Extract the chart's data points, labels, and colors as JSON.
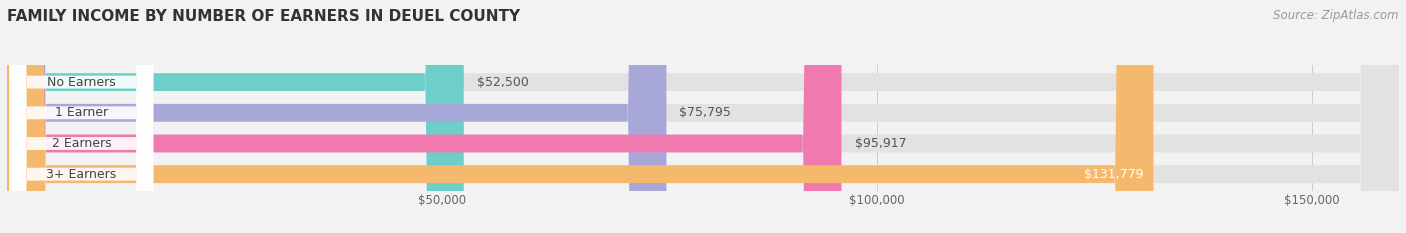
{
  "title": "FAMILY INCOME BY NUMBER OF EARNERS IN DEUEL COUNTY",
  "source": "Source: ZipAtlas.com",
  "categories": [
    "No Earners",
    "1 Earner",
    "2 Earners",
    "3+ Earners"
  ],
  "values": [
    52500,
    75795,
    95917,
    131779
  ],
  "bar_colors": [
    "#6ececa",
    "#a8a8d8",
    "#f07ab0",
    "#f5b96e"
  ],
  "value_labels": [
    "$52,500",
    "$75,795",
    "$95,917",
    "$131,779"
  ],
  "xlabel_ticks": [
    50000,
    100000,
    150000
  ],
  "xlabel_labels": [
    "$50,000",
    "$100,000",
    "$150,000"
  ],
  "xmin": 0,
  "xmax": 160000,
  "background_color": "#f2f2f2",
  "bar_bg_color": "#e2e2e2",
  "title_fontsize": 11,
  "label_fontsize": 9,
  "tick_fontsize": 8.5,
  "source_fontsize": 8.5
}
